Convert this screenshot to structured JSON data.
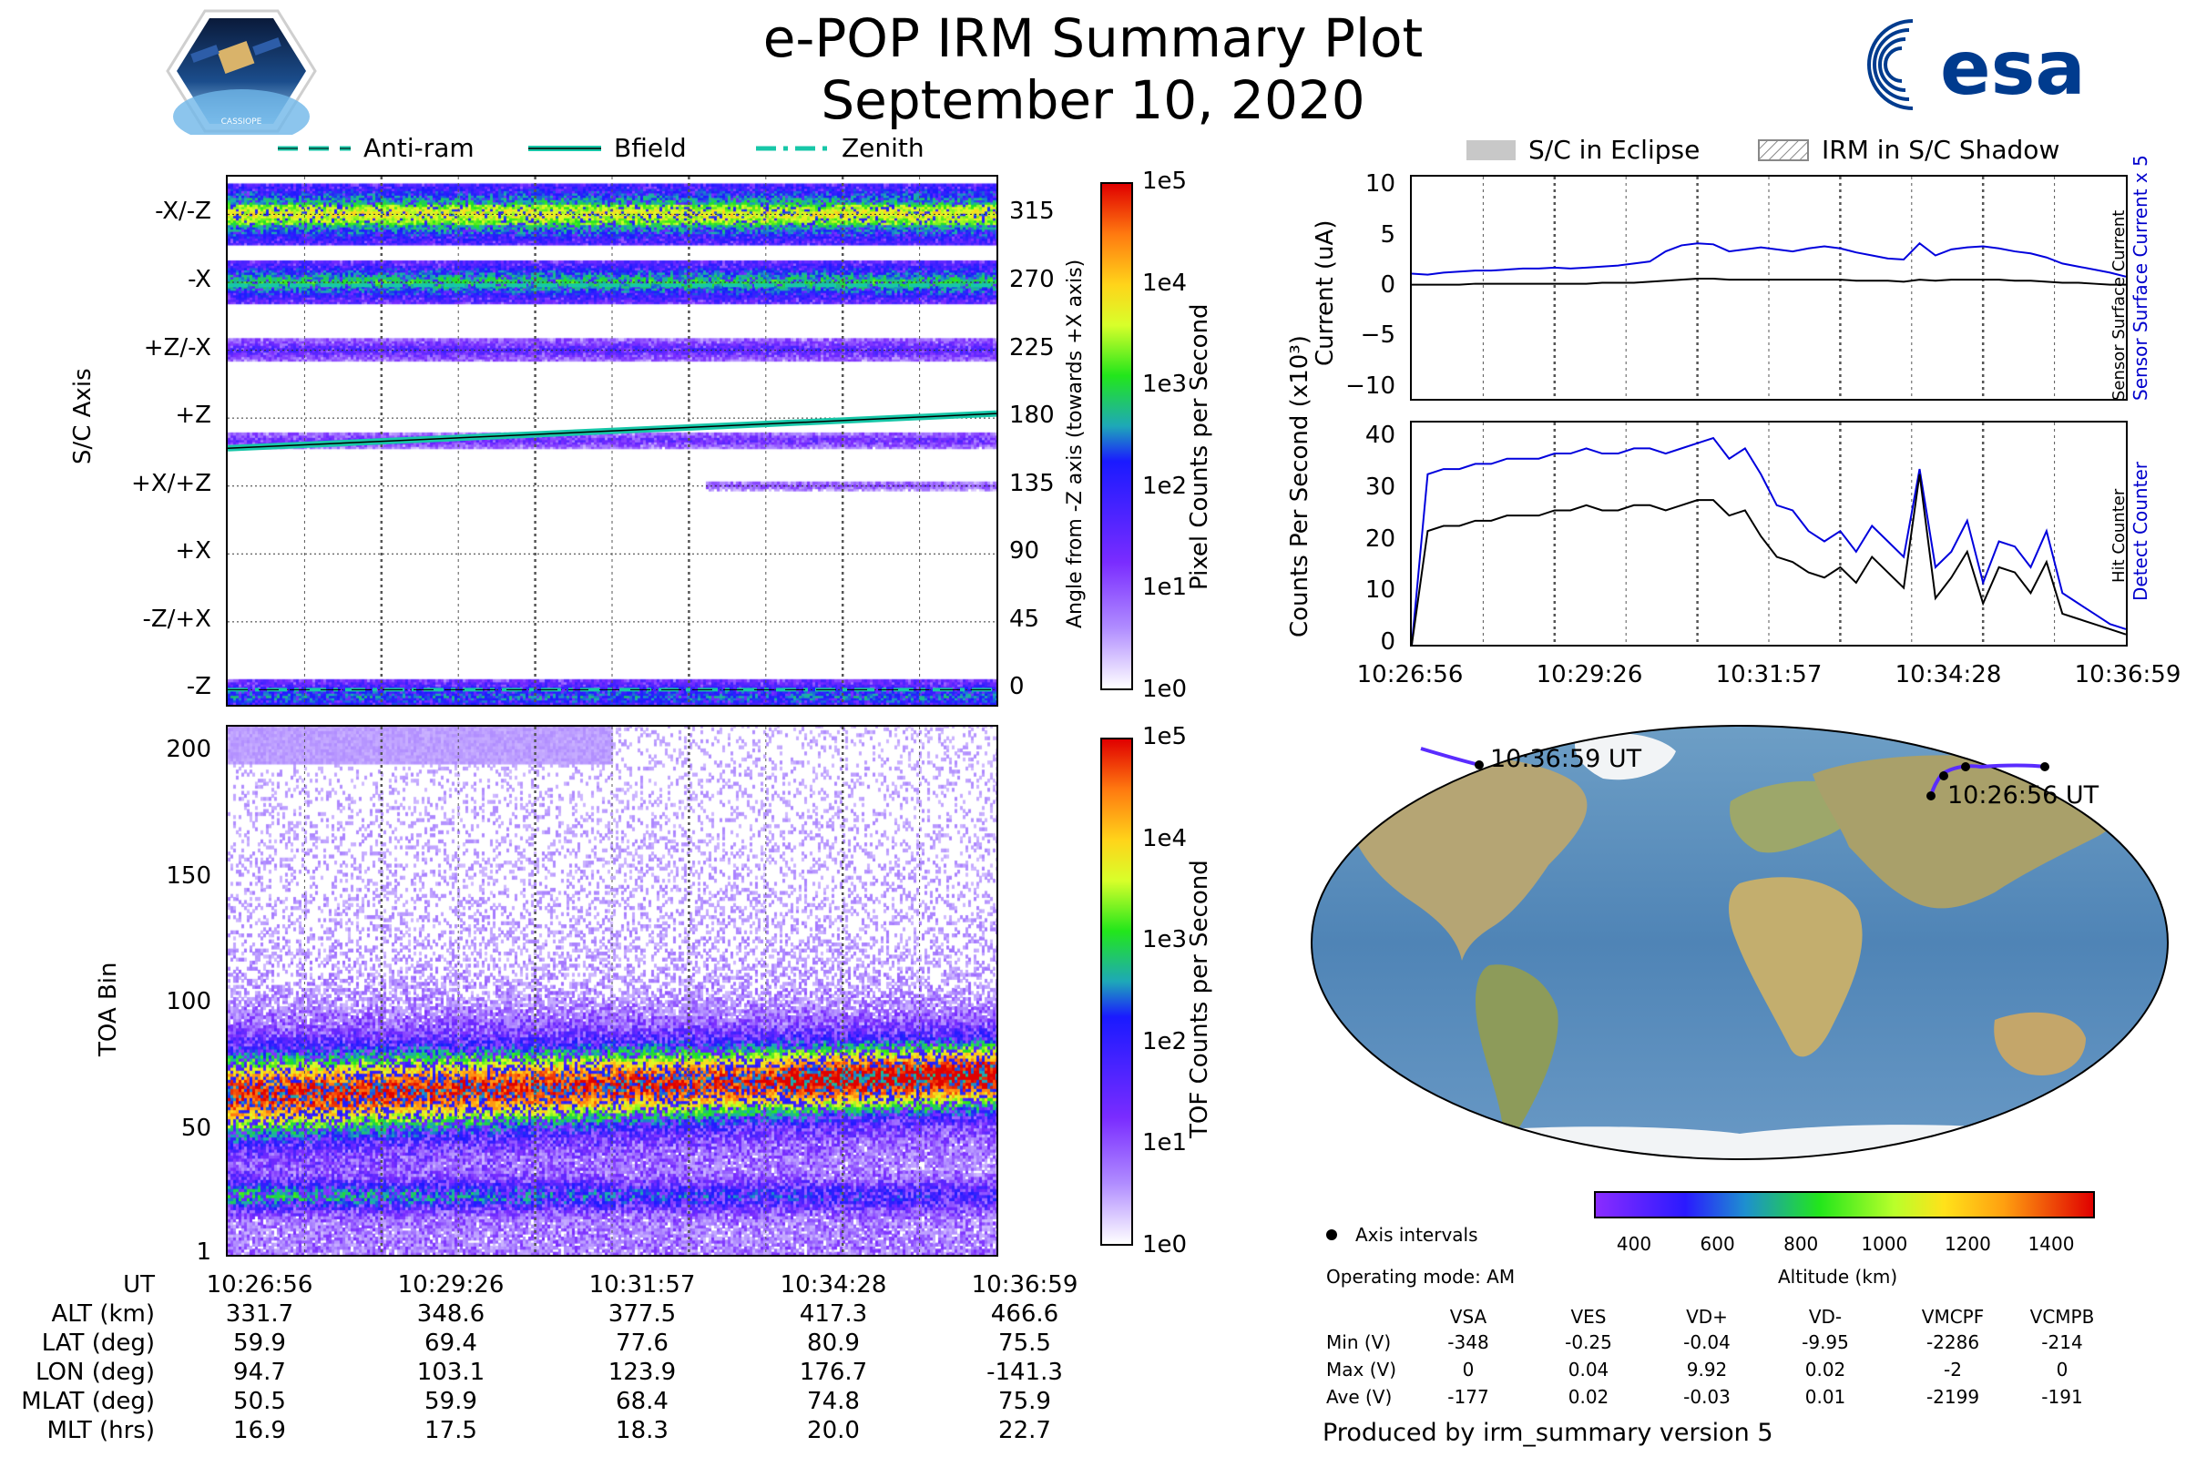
{
  "header": {
    "title_line1": "e-POP IRM Summary Plot",
    "title_line2": "September 10, 2020",
    "logo_left_label": "CASSIOPE",
    "logo_right_label": "esa"
  },
  "legend_left": {
    "items": [
      {
        "label": "Anti-ram",
        "style": "dashed"
      },
      {
        "label": "Bfield",
        "style": "solid"
      },
      {
        "label": "Zenith",
        "style": "dashdot"
      }
    ],
    "color": "#17c7a8"
  },
  "legend_right": {
    "items": [
      {
        "label": "S/C in Eclipse",
        "style": "gray-box"
      },
      {
        "label": "IRM in S/C Shadow",
        "style": "hatched-box"
      }
    ]
  },
  "chart_data": [
    {
      "id": "sc-axis-spectrogram",
      "type": "heatmap",
      "ylabel": "S/C Axis",
      "ylabel_right": "Angle from -Z axis (towards +X axis)",
      "y_ticks_left": [
        "-X/-Z",
        "-X",
        "+Z/-X",
        "+Z",
        "+X/+Z",
        "+X",
        "-Z/+X",
        "-Z"
      ],
      "y_ticks_right": [
        "315",
        "270",
        "225",
        "180",
        "135",
        "90",
        "45",
        "0"
      ],
      "ylim": [
        -10,
        340
      ],
      "colorbar": {
        "label": "Pixel Counts per Second",
        "ticks": [
          "1e5",
          "1e4",
          "1e3",
          "1e2",
          "1e1",
          "1e0"
        ]
      },
      "bfield_line": {
        "start_angle": 160,
        "end_angle": 183
      }
    },
    {
      "id": "toa-spectrogram",
      "type": "heatmap",
      "ylabel": "TOA Bin",
      "y_ticks": [
        "200",
        "150",
        "100",
        "50",
        "1"
      ],
      "ylim": [
        1,
        210
      ],
      "colorbar": {
        "label": "TOF Counts per Second",
        "ticks": [
          "1e5",
          "1e4",
          "1e3",
          "1e2",
          "1e1",
          "1e0"
        ]
      }
    },
    {
      "id": "current-plot",
      "type": "line",
      "ylabel": "Current (uA)",
      "right_label_top": "Sensor Surface Current x 5",
      "right_label_bottom": "Sensor Surface Current",
      "y_ticks": [
        "10",
        "5",
        "0",
        "−5",
        "−10"
      ],
      "ylim": [
        -11,
        11
      ],
      "series": [
        {
          "name": "Sensor Surface Current x 5",
          "color": "#0000dd",
          "values": [
            1.4,
            1.3,
            1.5,
            1.6,
            1.7,
            1.7,
            1.8,
            1.9,
            1.9,
            2.0,
            1.9,
            2.0,
            2.1,
            2.2,
            2.4,
            2.6,
            3.6,
            4.2,
            4.4,
            4.3,
            3.6,
            3.8,
            4.0,
            3.8,
            3.6,
            3.9,
            4.1,
            3.9,
            3.5,
            3.2,
            2.9,
            2.8,
            4.4,
            3.2,
            3.8,
            4.0,
            4.1,
            3.9,
            3.6,
            3.4,
            3.0,
            2.4,
            2.1,
            1.8,
            1.5,
            1.1
          ]
        },
        {
          "name": "Sensor Surface Current",
          "color": "#000000",
          "values": [
            0.3,
            0.3,
            0.3,
            0.3,
            0.4,
            0.4,
            0.4,
            0.4,
            0.4,
            0.4,
            0.4,
            0.4,
            0.5,
            0.5,
            0.5,
            0.6,
            0.7,
            0.8,
            0.9,
            0.9,
            0.8,
            0.8,
            0.8,
            0.8,
            0.8,
            0.8,
            0.8,
            0.8,
            0.7,
            0.7,
            0.7,
            0.6,
            0.8,
            0.7,
            0.8,
            0.8,
            0.8,
            0.8,
            0.7,
            0.7,
            0.6,
            0.5,
            0.5,
            0.4,
            0.3,
            0.3
          ]
        }
      ]
    },
    {
      "id": "counts-plot",
      "type": "line",
      "ylabel": "Counts Per Second (x10³)",
      "right_label_top": "Detect Counter",
      "right_label_bottom": "Hit Counter",
      "y_ticks": [
        "40",
        "30",
        "20",
        "10",
        "0"
      ],
      "ylim": [
        0,
        43
      ],
      "series": [
        {
          "name": "Detect Counter",
          "color": "#0000dd",
          "values": [
            0,
            33,
            34,
            34,
            35,
            35,
            36,
            36,
            36,
            37,
            37,
            38,
            37,
            37,
            38,
            38,
            37,
            38,
            39,
            40,
            36,
            38,
            33,
            27,
            26,
            22,
            20,
            22,
            18,
            23,
            20,
            17,
            34,
            15,
            18,
            24,
            12,
            20,
            19,
            15,
            22,
            10,
            8,
            6,
            4,
            3
          ]
        },
        {
          "name": "Hit Counter",
          "color": "#000000",
          "values": [
            0,
            22,
            23,
            23,
            24,
            24,
            25,
            25,
            25,
            26,
            26,
            27,
            26,
            26,
            27,
            27,
            26,
            27,
            28,
            28,
            25,
            26,
            21,
            17,
            16,
            14,
            13,
            15,
            12,
            17,
            14,
            11,
            33,
            9,
            13,
            18,
            8,
            15,
            14,
            10,
            16,
            6,
            5,
            4,
            3,
            2
          ]
        }
      ]
    }
  ],
  "x_axis": {
    "ticks": [
      "10:26:56",
      "10:29:26",
      "10:31:57",
      "10:34:28",
      "10:36:59"
    ]
  },
  "ephemeris": {
    "rows": [
      {
        "label": "UT",
        "values": [
          "10:26:56",
          "10:29:26",
          "10:31:57",
          "10:34:28",
          "10:36:59"
        ]
      },
      {
        "label": "ALT (km)",
        "values": [
          "331.7",
          "348.6",
          "377.5",
          "417.3",
          "466.6"
        ]
      },
      {
        "label": "LAT (deg)",
        "values": [
          "59.9",
          "69.4",
          "77.6",
          "80.9",
          "75.5"
        ]
      },
      {
        "label": "LON (deg)",
        "values": [
          "94.7",
          "103.1",
          "123.9",
          "176.7",
          "-141.3"
        ]
      },
      {
        "label": "MLAT (deg)",
        "values": [
          "50.5",
          "59.9",
          "68.4",
          "74.8",
          "75.9"
        ]
      },
      {
        "label": "MLT (hrs)",
        "values": [
          "16.9",
          "17.5",
          "18.3",
          "20.0",
          "22.7"
        ]
      }
    ]
  },
  "map": {
    "start_label": "10:26:56 UT",
    "end_label": "10:36:59 UT",
    "altitude_colorbar": {
      "label": "Altitude (km)",
      "ticks": [
        "400",
        "600",
        "800",
        "1000",
        "1200",
        "1400"
      ]
    },
    "legend_axis_intervals": "Axis intervals",
    "operating_mode": "Operating mode: AM"
  },
  "voltages": {
    "columns": [
      "VSA",
      "VES",
      "VD+",
      "VD-",
      "VMCPF",
      "VCMPB"
    ],
    "rows": [
      {
        "label": "Min (V)",
        "values": [
          "-348",
          "-0.25",
          "-0.04",
          "-9.95",
          "-2286",
          "-214"
        ]
      },
      {
        "label": "Max (V)",
        "values": [
          "0",
          "0.04",
          "9.92",
          "0.02",
          "-2",
          "0"
        ]
      },
      {
        "label": "Ave (V)",
        "values": [
          "-177",
          "0.02",
          "-0.03",
          "0.01",
          "-2199",
          "-191"
        ]
      }
    ]
  },
  "footer": "Produced by irm_summary version 5"
}
